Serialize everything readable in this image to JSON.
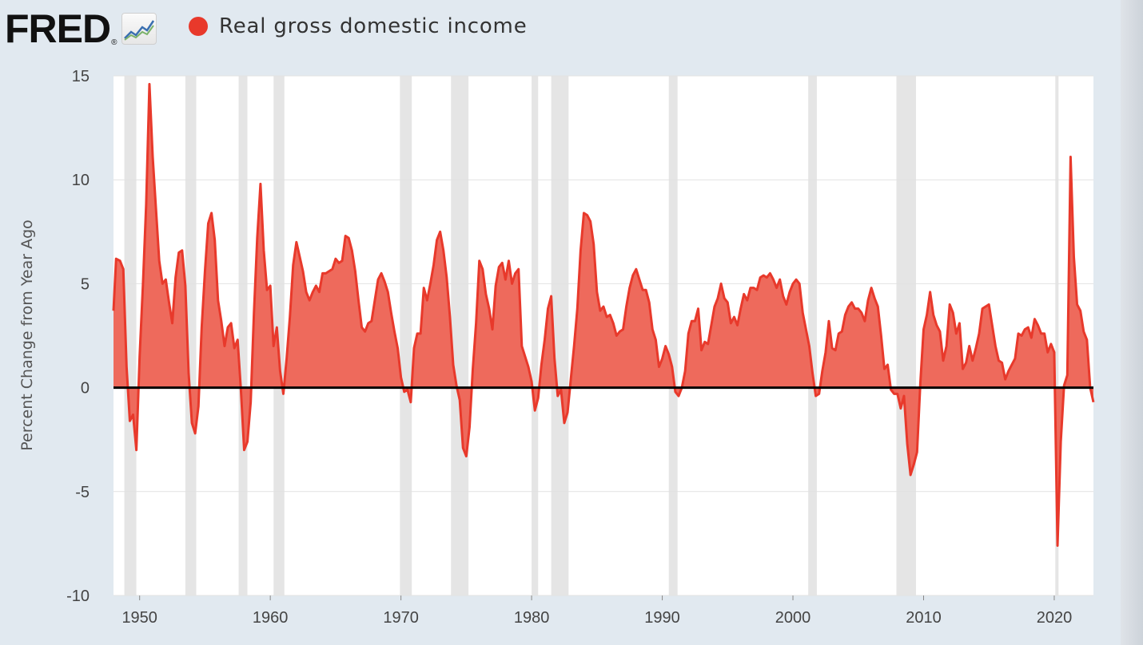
{
  "header": {
    "logo_text": "FRED",
    "logo_reg": "®",
    "legend_label": "Real gross domestic income",
    "series_color": "#e8392b"
  },
  "chart_data": {
    "type": "area",
    "series": [
      {
        "name": "Real gross domestic income",
        "color": "#e8392b",
        "points": [
          [
            1948.0,
            3.7
          ],
          [
            1948.2,
            6.2
          ],
          [
            1948.5,
            6.1
          ],
          [
            1948.75,
            5.7
          ],
          [
            1949.0,
            1.0
          ],
          [
            1949.25,
            -1.6
          ],
          [
            1949.5,
            -1.3
          ],
          [
            1949.75,
            -3.0
          ],
          [
            1950.0,
            1.5
          ],
          [
            1950.25,
            4.9
          ],
          [
            1950.5,
            8.8
          ],
          [
            1950.75,
            14.6
          ],
          [
            1951.0,
            11.1
          ],
          [
            1951.25,
            8.6
          ],
          [
            1951.5,
            6.1
          ],
          [
            1951.75,
            5.0
          ],
          [
            1952.0,
            5.2
          ],
          [
            1952.25,
            4.1
          ],
          [
            1952.5,
            3.1
          ],
          [
            1952.75,
            5.3
          ],
          [
            1953.0,
            6.5
          ],
          [
            1953.25,
            6.6
          ],
          [
            1953.5,
            4.9
          ],
          [
            1953.75,
            0.7
          ],
          [
            1954.0,
            -1.7
          ],
          [
            1954.25,
            -2.2
          ],
          [
            1954.5,
            -0.9
          ],
          [
            1954.75,
            2.9
          ],
          [
            1955.0,
            5.6
          ],
          [
            1955.25,
            7.9
          ],
          [
            1955.5,
            8.4
          ],
          [
            1955.75,
            7.1
          ],
          [
            1956.0,
            4.2
          ],
          [
            1956.25,
            3.2
          ],
          [
            1956.5,
            2.0
          ],
          [
            1956.75,
            2.9
          ],
          [
            1957.0,
            3.1
          ],
          [
            1957.25,
            1.9
          ],
          [
            1957.5,
            2.3
          ],
          [
            1957.75,
            -0.1
          ],
          [
            1958.0,
            -3.0
          ],
          [
            1958.25,
            -2.6
          ],
          [
            1958.5,
            -0.7
          ],
          [
            1958.75,
            3.6
          ],
          [
            1959.0,
            7.2
          ],
          [
            1959.25,
            9.8
          ],
          [
            1959.5,
            6.6
          ],
          [
            1959.75,
            4.7
          ],
          [
            1960.0,
            4.9
          ],
          [
            1960.25,
            2.0
          ],
          [
            1960.5,
            2.9
          ],
          [
            1960.75,
            0.8
          ],
          [
            1961.0,
            -0.3
          ],
          [
            1961.25,
            1.4
          ],
          [
            1961.5,
            3.4
          ],
          [
            1961.75,
            5.9
          ],
          [
            1962.0,
            7.0
          ],
          [
            1962.25,
            6.3
          ],
          [
            1962.5,
            5.6
          ],
          [
            1962.75,
            4.6
          ],
          [
            1963.0,
            4.2
          ],
          [
            1963.25,
            4.6
          ],
          [
            1963.5,
            4.9
          ],
          [
            1963.75,
            4.6
          ],
          [
            1964.0,
            5.5
          ],
          [
            1964.25,
            5.5
          ],
          [
            1964.5,
            5.6
          ],
          [
            1964.75,
            5.7
          ],
          [
            1965.0,
            6.2
          ],
          [
            1965.25,
            6.0
          ],
          [
            1965.5,
            6.1
          ],
          [
            1965.75,
            7.3
          ],
          [
            1966.0,
            7.2
          ],
          [
            1966.25,
            6.6
          ],
          [
            1966.5,
            5.6
          ],
          [
            1966.75,
            4.2
          ],
          [
            1967.0,
            2.9
          ],
          [
            1967.25,
            2.7
          ],
          [
            1967.5,
            3.1
          ],
          [
            1967.75,
            3.2
          ],
          [
            1968.0,
            4.2
          ],
          [
            1968.25,
            5.2
          ],
          [
            1968.5,
            5.5
          ],
          [
            1968.75,
            5.1
          ],
          [
            1969.0,
            4.6
          ],
          [
            1969.25,
            3.6
          ],
          [
            1969.5,
            2.7
          ],
          [
            1969.75,
            1.9
          ],
          [
            1970.0,
            0.5
          ],
          [
            1970.25,
            -0.2
          ],
          [
            1970.5,
            -0.1
          ],
          [
            1970.75,
            -0.7
          ],
          [
            1971.0,
            1.9
          ],
          [
            1971.25,
            2.6
          ],
          [
            1971.5,
            2.6
          ],
          [
            1971.75,
            4.8
          ],
          [
            1972.0,
            4.2
          ],
          [
            1972.25,
            5.0
          ],
          [
            1972.5,
            5.9
          ],
          [
            1972.75,
            7.1
          ],
          [
            1973.0,
            7.5
          ],
          [
            1973.25,
            6.6
          ],
          [
            1973.5,
            5.3
          ],
          [
            1973.75,
            3.4
          ],
          [
            1974.0,
            1.1
          ],
          [
            1974.25,
            0.1
          ],
          [
            1974.5,
            -0.6
          ],
          [
            1974.75,
            -2.9
          ],
          [
            1975.0,
            -3.3
          ],
          [
            1975.25,
            -1.9
          ],
          [
            1975.5,
            0.9
          ],
          [
            1975.75,
            3.1
          ],
          [
            1976.0,
            6.1
          ],
          [
            1976.25,
            5.7
          ],
          [
            1976.5,
            4.5
          ],
          [
            1976.75,
            3.8
          ],
          [
            1977.0,
            2.8
          ],
          [
            1977.25,
            4.9
          ],
          [
            1977.5,
            5.8
          ],
          [
            1977.75,
            6.0
          ],
          [
            1978.0,
            5.2
          ],
          [
            1978.25,
            6.1
          ],
          [
            1978.5,
            5.0
          ],
          [
            1978.75,
            5.5
          ],
          [
            1979.0,
            5.7
          ],
          [
            1979.25,
            2.0
          ],
          [
            1979.5,
            1.5
          ],
          [
            1979.75,
            1.0
          ],
          [
            1980.0,
            0.3
          ],
          [
            1980.25,
            -1.1
          ],
          [
            1980.5,
            -0.5
          ],
          [
            1980.75,
            1.1
          ],
          [
            1981.0,
            2.3
          ],
          [
            1981.25,
            3.8
          ],
          [
            1981.5,
            4.4
          ],
          [
            1981.75,
            1.4
          ],
          [
            1982.0,
            -0.4
          ],
          [
            1982.25,
            -0.1
          ],
          [
            1982.5,
            -1.7
          ],
          [
            1982.75,
            -1.2
          ],
          [
            1983.0,
            0.4
          ],
          [
            1983.25,
            2.0
          ],
          [
            1983.5,
            3.8
          ],
          [
            1983.75,
            6.6
          ],
          [
            1984.0,
            8.4
          ],
          [
            1984.25,
            8.3
          ],
          [
            1984.5,
            8.0
          ],
          [
            1984.75,
            6.9
          ],
          [
            1985.0,
            4.6
          ],
          [
            1985.25,
            3.7
          ],
          [
            1985.5,
            3.9
          ],
          [
            1985.75,
            3.4
          ],
          [
            1986.0,
            3.5
          ],
          [
            1986.25,
            3.1
          ],
          [
            1986.5,
            2.5
          ],
          [
            1986.75,
            2.7
          ],
          [
            1987.0,
            2.8
          ],
          [
            1987.25,
            3.9
          ],
          [
            1987.5,
            4.8
          ],
          [
            1987.75,
            5.4
          ],
          [
            1988.0,
            5.7
          ],
          [
            1988.25,
            5.2
          ],
          [
            1988.5,
            4.7
          ],
          [
            1988.75,
            4.7
          ],
          [
            1989.0,
            4.1
          ],
          [
            1989.25,
            2.8
          ],
          [
            1989.5,
            2.3
          ],
          [
            1989.75,
            1.0
          ],
          [
            1990.0,
            1.4
          ],
          [
            1990.25,
            2.0
          ],
          [
            1990.5,
            1.6
          ],
          [
            1990.75,
            1.0
          ],
          [
            1991.0,
            -0.2
          ],
          [
            1991.25,
            -0.4
          ],
          [
            1991.5,
            0.0
          ],
          [
            1991.75,
            0.8
          ],
          [
            1992.0,
            2.6
          ],
          [
            1992.25,
            3.2
          ],
          [
            1992.5,
            3.2
          ],
          [
            1992.75,
            3.8
          ],
          [
            1993.0,
            1.8
          ],
          [
            1993.25,
            2.2
          ],
          [
            1993.5,
            2.1
          ],
          [
            1993.75,
            3.0
          ],
          [
            1994.0,
            3.9
          ],
          [
            1994.25,
            4.3
          ],
          [
            1994.5,
            5.0
          ],
          [
            1994.75,
            4.3
          ],
          [
            1995.0,
            4.1
          ],
          [
            1995.25,
            3.1
          ],
          [
            1995.5,
            3.4
          ],
          [
            1995.75,
            3.0
          ],
          [
            1996.0,
            3.8
          ],
          [
            1996.25,
            4.5
          ],
          [
            1996.5,
            4.2
          ],
          [
            1996.75,
            4.8
          ],
          [
            1997.0,
            4.8
          ],
          [
            1997.25,
            4.7
          ],
          [
            1997.5,
            5.3
          ],
          [
            1997.75,
            5.4
          ],
          [
            1998.0,
            5.3
          ],
          [
            1998.25,
            5.5
          ],
          [
            1998.5,
            5.2
          ],
          [
            1998.75,
            4.8
          ],
          [
            1999.0,
            5.2
          ],
          [
            1999.25,
            4.4
          ],
          [
            1999.5,
            4.0
          ],
          [
            1999.75,
            4.6
          ],
          [
            2000.0,
            5.0
          ],
          [
            2000.25,
            5.2
          ],
          [
            2000.5,
            5.0
          ],
          [
            2000.75,
            3.6
          ],
          [
            2001.0,
            2.8
          ],
          [
            2001.25,
            2.0
          ],
          [
            2001.5,
            0.7
          ],
          [
            2001.75,
            -0.4
          ],
          [
            2002.0,
            -0.3
          ],
          [
            2002.25,
            0.8
          ],
          [
            2002.5,
            1.7
          ],
          [
            2002.75,
            3.2
          ],
          [
            2003.0,
            1.9
          ],
          [
            2003.25,
            1.8
          ],
          [
            2003.5,
            2.6
          ],
          [
            2003.75,
            2.7
          ],
          [
            2004.0,
            3.5
          ],
          [
            2004.25,
            3.9
          ],
          [
            2004.5,
            4.1
          ],
          [
            2004.75,
            3.8
          ],
          [
            2005.0,
            3.8
          ],
          [
            2005.25,
            3.6
          ],
          [
            2005.5,
            3.2
          ],
          [
            2005.75,
            4.2
          ],
          [
            2006.0,
            4.8
          ],
          [
            2006.25,
            4.3
          ],
          [
            2006.5,
            3.9
          ],
          [
            2006.75,
            2.5
          ],
          [
            2007.0,
            0.9
          ],
          [
            2007.25,
            1.1
          ],
          [
            2007.5,
            -0.1
          ],
          [
            2007.75,
            -0.3
          ],
          [
            2008.0,
            -0.3
          ],
          [
            2008.25,
            -1.0
          ],
          [
            2008.5,
            -0.4
          ],
          [
            2008.75,
            -2.7
          ],
          [
            2009.0,
            -4.2
          ],
          [
            2009.25,
            -3.7
          ],
          [
            2009.5,
            -3.1
          ],
          [
            2009.75,
            0.2
          ],
          [
            2010.0,
            2.8
          ],
          [
            2010.25,
            3.5
          ],
          [
            2010.5,
            4.6
          ],
          [
            2010.75,
            3.5
          ],
          [
            2011.0,
            3.0
          ],
          [
            2011.25,
            2.7
          ],
          [
            2011.5,
            1.3
          ],
          [
            2011.75,
            2.0
          ],
          [
            2012.0,
            4.0
          ],
          [
            2012.25,
            3.6
          ],
          [
            2012.5,
            2.6
          ],
          [
            2012.75,
            3.1
          ],
          [
            2013.0,
            0.9
          ],
          [
            2013.25,
            1.2
          ],
          [
            2013.5,
            2.0
          ],
          [
            2013.75,
            1.3
          ],
          [
            2014.0,
            1.9
          ],
          [
            2014.25,
            2.6
          ],
          [
            2014.5,
            3.8
          ],
          [
            2014.75,
            3.9
          ],
          [
            2015.0,
            4.0
          ],
          [
            2015.25,
            3.0
          ],
          [
            2015.5,
            2.0
          ],
          [
            2015.75,
            1.3
          ],
          [
            2016.0,
            1.2
          ],
          [
            2016.25,
            0.4
          ],
          [
            2016.5,
            0.8
          ],
          [
            2016.75,
            1.1
          ],
          [
            2017.0,
            1.4
          ],
          [
            2017.25,
            2.6
          ],
          [
            2017.5,
            2.5
          ],
          [
            2017.75,
            2.8
          ],
          [
            2018.0,
            2.9
          ],
          [
            2018.25,
            2.4
          ],
          [
            2018.5,
            3.3
          ],
          [
            2018.75,
            3.0
          ],
          [
            2019.0,
            2.6
          ],
          [
            2019.25,
            2.6
          ],
          [
            2019.5,
            1.7
          ],
          [
            2019.75,
            2.1
          ],
          [
            2020.0,
            1.7
          ],
          [
            2020.25,
            -7.6
          ],
          [
            2020.5,
            -2.6
          ],
          [
            2020.75,
            0.1
          ],
          [
            2021.0,
            0.6
          ],
          [
            2021.25,
            11.1
          ],
          [
            2021.5,
            6.3
          ],
          [
            2021.75,
            4.0
          ],
          [
            2022.0,
            3.7
          ],
          [
            2022.25,
            2.7
          ],
          [
            2022.5,
            2.3
          ],
          [
            2022.75,
            0.0
          ],
          [
            2023.0,
            -0.7
          ]
        ]
      }
    ],
    "recessions": [
      [
        1948.83,
        1949.75
      ],
      [
        1953.5,
        1954.33
      ],
      [
        1957.58,
        1958.25
      ],
      [
        1960.25,
        1961.08
      ],
      [
        1969.92,
        1970.83
      ],
      [
        1973.83,
        1975.17
      ],
      [
        1980.0,
        1980.5
      ],
      [
        1981.5,
        1982.83
      ],
      [
        1990.5,
        1991.17
      ],
      [
        2001.17,
        2001.83
      ],
      [
        2007.92,
        2009.42
      ],
      [
        2020.08,
        2020.33
      ]
    ],
    "xlim": [
      1948,
      2023
    ],
    "ylim": [
      -10,
      15
    ],
    "x_ticks": [
      "1950",
      "1960",
      "1970",
      "1980",
      "1990",
      "2000",
      "2010",
      "2020"
    ],
    "y_ticks": [
      "15",
      "10",
      "5",
      "0",
      "-5",
      "-10"
    ],
    "ylabel": "Percent Change from Year Ago",
    "xlabel": "",
    "grid": true,
    "zero_line": true
  }
}
